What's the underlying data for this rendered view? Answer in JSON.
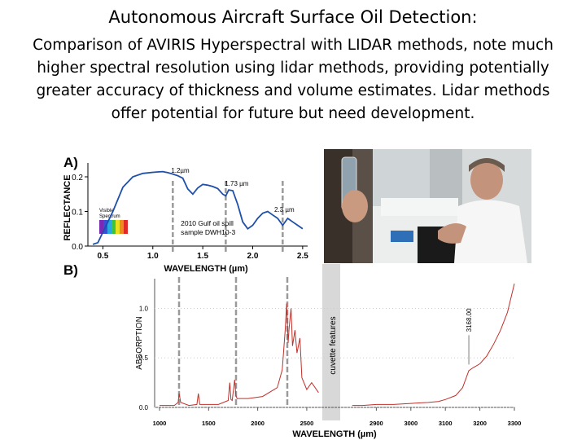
{
  "title": "Autonomous Aircraft Surface Oil Detection:",
  "subtitle": "Comparison of AVIRIS Hyperspectral with LIDAR methods, note much higher spectral resolution using lidar methods, providing potentially greater accuracy of thickness and volume estimates. Lidar methods offer potential for future but need development.",
  "colors": {
    "spectrum_line": "#1f4fa8",
    "ir_line": "#c0302a",
    "marker_line": "#9a9a9a",
    "cuvette_band": "#d8d8d8"
  },
  "chart_data": [
    {
      "type": "line",
      "panel_label": "A)",
      "xlabel": "WAVELENGTH (µm)",
      "ylabel": "REFLECTANCE",
      "x_ticks": [
        "0.5",
        "1.0",
        "1.5",
        "2.0",
        "2.5"
      ],
      "y_ticks": [
        "0.0",
        "0.1",
        "0.2"
      ],
      "xlim": [
        0.35,
        2.55
      ],
      "ylim": [
        0.0,
        0.24
      ],
      "annotations": [
        "1.2µm",
        "1.73 µm",
        "2.3 µm"
      ],
      "marker_x": [
        1.2,
        1.73,
        2.3
      ],
      "inset_labels": [
        "Visible Spectrum"
      ],
      "sample_label": "2010 Gulf oil spill sample DWH10-3",
      "x": [
        0.4,
        0.45,
        0.5,
        0.6,
        0.7,
        0.8,
        0.9,
        1.0,
        1.05,
        1.1,
        1.15,
        1.2,
        1.25,
        1.3,
        1.35,
        1.4,
        1.45,
        1.5,
        1.55,
        1.6,
        1.65,
        1.7,
        1.73,
        1.76,
        1.8,
        1.85,
        1.9,
        1.95,
        2.0,
        2.05,
        2.1,
        2.15,
        2.2,
        2.25,
        2.3,
        2.35,
        2.4,
        2.45,
        2.5
      ],
      "y": [
        0.005,
        0.01,
        0.04,
        0.1,
        0.17,
        0.2,
        0.21,
        0.213,
        0.214,
        0.215,
        0.212,
        0.208,
        0.203,
        0.196,
        0.165,
        0.15,
        0.168,
        0.178,
        0.176,
        0.172,
        0.166,
        0.15,
        0.145,
        0.162,
        0.16,
        0.12,
        0.07,
        0.05,
        0.06,
        0.08,
        0.095,
        0.1,
        0.09,
        0.08,
        0.06,
        0.08,
        0.07,
        0.06,
        0.05
      ]
    },
    {
      "type": "line",
      "panel_label": "B)",
      "xlabel": "WAVELENGTH (µm)",
      "ylabel": "ABSORPTION",
      "x_ticks": [
        "1000",
        "1500",
        "2000",
        "2500",
        "2900",
        "3000",
        "3100",
        "3200",
        "3300"
      ],
      "y_ticks": [
        "0.0",
        "0.5",
        "1.0"
      ],
      "y_ticks_positions": [
        0.0,
        0.5,
        1.0
      ],
      "peak_label": "3168.00",
      "cuvette_label": "cuvette features",
      "segment_left": {
        "xlim": [
          950,
          2650
        ],
        "x": [
          1000,
          1150,
          1190,
          1200,
          1215,
          1300,
          1380,
          1395,
          1410,
          1600,
          1700,
          1715,
          1728,
          1740,
          1765,
          1778,
          1790,
          1900,
          2050,
          2200,
          2250,
          2280,
          2295,
          2310,
          2320,
          2340,
          2355,
          2380,
          2400,
          2430,
          2450,
          2500,
          2550,
          2620
        ],
        "y": [
          0.02,
          0.02,
          0.05,
          0.14,
          0.05,
          0.02,
          0.03,
          0.14,
          0.03,
          0.03,
          0.07,
          0.25,
          0.08,
          0.07,
          0.28,
          0.12,
          0.09,
          0.09,
          0.11,
          0.2,
          0.38,
          0.78,
          1.05,
          0.65,
          0.8,
          1.0,
          0.62,
          0.78,
          0.55,
          0.7,
          0.3,
          0.18,
          0.25,
          0.15
        ]
      },
      "segment_right": {
        "xlim": [
          2800,
          3300
        ],
        "x": [
          2830,
          2860,
          2900,
          2950,
          3000,
          3050,
          3080,
          3100,
          3130,
          3150,
          3168,
          3180,
          3200,
          3220,
          3240,
          3260,
          3280,
          3300
        ],
        "y": [
          0.02,
          0.02,
          0.03,
          0.03,
          0.04,
          0.05,
          0.06,
          0.08,
          0.12,
          0.2,
          0.37,
          0.4,
          0.44,
          0.52,
          0.64,
          0.78,
          0.96,
          1.25
        ]
      }
    }
  ]
}
